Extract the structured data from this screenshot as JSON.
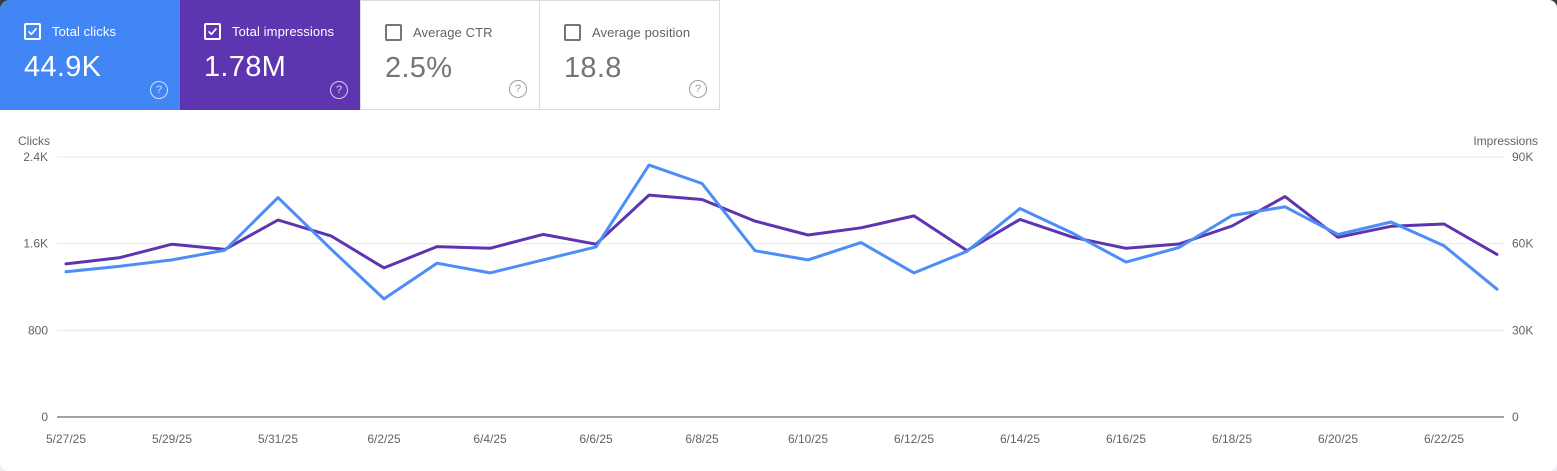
{
  "cards": [
    {
      "id": "total-clicks",
      "label": "Total clicks",
      "value": "44.9K",
      "selected": true,
      "color": "#4285f4"
    },
    {
      "id": "total-impressions",
      "label": "Total impressions",
      "value": "1.78M",
      "selected": true,
      "color": "#5e35b1"
    },
    {
      "id": "average-ctr",
      "label": "Average CTR",
      "value": "2.5%",
      "selected": false,
      "color": "#ffffff"
    },
    {
      "id": "average-position",
      "label": "Average position",
      "value": "18.8",
      "selected": false,
      "color": "#ffffff"
    }
  ],
  "help_glyph": "?",
  "chart_data": {
    "type": "line",
    "x": [
      "5/27/25",
      "5/28/25",
      "5/29/25",
      "5/30/25",
      "5/31/25",
      "6/1/25",
      "6/2/25",
      "6/3/25",
      "6/4/25",
      "6/5/25",
      "6/6/25",
      "6/7/25",
      "6/8/25",
      "6/9/25",
      "6/10/25",
      "6/11/25",
      "6/12/25",
      "6/13/25",
      "6/14/25",
      "6/15/25",
      "6/16/25",
      "6/17/25",
      "6/18/25",
      "6/19/25",
      "6/20/25",
      "6/21/25",
      "6/22/25",
      "6/23/25"
    ],
    "x_tick_labels": [
      "5/27/25",
      "5/29/25",
      "5/31/25",
      "6/2/25",
      "6/4/25",
      "6/6/25",
      "6/8/25",
      "6/10/25",
      "6/12/25",
      "6/14/25",
      "6/16/25",
      "6/18/25",
      "6/20/25",
      "6/22/25"
    ],
    "series": [
      {
        "name": "Clicks",
        "axis": "left",
        "color": "#4d8df6",
        "values": [
          1340,
          1390,
          1450,
          1540,
          2025,
          1550,
          1090,
          1420,
          1330,
          1450,
          1570,
          2325,
          2155,
          1535,
          1450,
          1610,
          1330,
          1530,
          1925,
          1695,
          1430,
          1565,
          1860,
          1940,
          1685,
          1800,
          1580,
          1180
        ]
      },
      {
        "name": "Impressions",
        "axis": "right",
        "color": "#5e35b1",
        "values": [
          53000,
          55100,
          59800,
          58000,
          68200,
          62700,
          51600,
          59000,
          58400,
          63200,
          59800,
          76800,
          75300,
          67800,
          63000,
          65500,
          69600,
          57600,
          68400,
          62200,
          58400,
          59900,
          66100,
          76300,
          62200,
          66000,
          66800,
          56300
        ]
      }
    ],
    "left_axis": {
      "label": "Clicks",
      "tick_labels": [
        "0",
        "800",
        "1.6K",
        "2.4K"
      ],
      "tick_values": [
        0,
        800,
        1600,
        2400
      ],
      "max": 2400
    },
    "right_axis": {
      "label": "Impressions",
      "tick_labels": [
        "0",
        "30K",
        "60K",
        "90K"
      ],
      "tick_values": [
        0,
        30000,
        60000,
        90000
      ],
      "max": 90000
    },
    "grid": "horizontal",
    "legend": "none"
  }
}
